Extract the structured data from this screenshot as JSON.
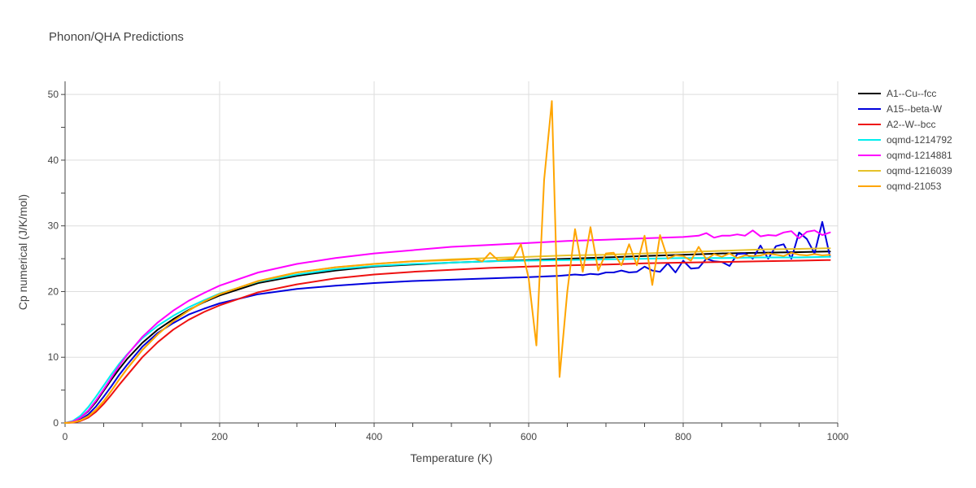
{
  "chart_data": {
    "type": "line",
    "title": "Phonon/QHA Predictions",
    "xlabel": "Temperature (K)",
    "ylabel": "Cp numerical (J/K/mol)",
    "xlim": [
      0,
      1000
    ],
    "ylim": [
      0,
      52
    ],
    "xticks": [
      0,
      200,
      400,
      600,
      800,
      1000
    ],
    "yticks": [
      0,
      10,
      20,
      30,
      40,
      50
    ],
    "grid": true,
    "legend_position": "top-right",
    "series": [
      {
        "name": "A1--Cu--fcc",
        "color": "#000000",
        "points": [
          [
            0,
            0
          ],
          [
            10,
            0.2
          ],
          [
            20,
            0.8
          ],
          [
            30,
            1.8
          ],
          [
            40,
            3.2
          ],
          [
            50,
            4.9
          ],
          [
            60,
            6.6
          ],
          [
            70,
            8.2
          ],
          [
            80,
            9.7
          ],
          [
            100,
            12.2
          ],
          [
            120,
            14.2
          ],
          [
            140,
            15.8
          ],
          [
            160,
            17.2
          ],
          [
            180,
            18.4
          ],
          [
            200,
            19.4
          ],
          [
            250,
            21.3
          ],
          [
            300,
            22.4
          ],
          [
            350,
            23.2
          ],
          [
            400,
            23.8
          ],
          [
            450,
            24.1
          ],
          [
            500,
            24.4
          ],
          [
            550,
            24.6
          ],
          [
            600,
            24.8
          ],
          [
            650,
            25.0
          ],
          [
            700,
            25.2
          ],
          [
            750,
            25.4
          ],
          [
            800,
            25.6
          ],
          [
            850,
            25.8
          ],
          [
            900,
            25.9
          ],
          [
            950,
            26.0
          ],
          [
            990,
            26.1
          ]
        ]
      },
      {
        "name": "A15--beta-W",
        "color": "#0000dd",
        "points": [
          [
            0,
            0
          ],
          [
            10,
            0.1
          ],
          [
            20,
            0.5
          ],
          [
            30,
            1.3
          ],
          [
            40,
            2.5
          ],
          [
            50,
            4.0
          ],
          [
            60,
            5.6
          ],
          [
            70,
            7.3
          ],
          [
            80,
            8.8
          ],
          [
            100,
            11.6
          ],
          [
            120,
            13.7
          ],
          [
            140,
            15.2
          ],
          [
            160,
            16.5
          ],
          [
            180,
            17.4
          ],
          [
            200,
            18.2
          ],
          [
            250,
            19.6
          ],
          [
            300,
            20.4
          ],
          [
            350,
            20.9
          ],
          [
            400,
            21.3
          ],
          [
            450,
            21.6
          ],
          [
            500,
            21.8
          ],
          [
            550,
            22.0
          ],
          [
            600,
            22.2
          ],
          [
            640,
            22.4
          ],
          [
            660,
            22.6
          ],
          [
            670,
            22.5
          ],
          [
            680,
            22.7
          ],
          [
            690,
            22.6
          ],
          [
            700,
            22.9
          ],
          [
            710,
            22.9
          ],
          [
            720,
            23.2
          ],
          [
            730,
            22.9
          ],
          [
            740,
            23.0
          ],
          [
            750,
            23.8
          ],
          [
            760,
            23.2
          ],
          [
            770,
            23.0
          ],
          [
            780,
            24.3
          ],
          [
            790,
            22.9
          ],
          [
            800,
            24.7
          ],
          [
            810,
            23.5
          ],
          [
            820,
            23.6
          ],
          [
            830,
            25.0
          ],
          [
            840,
            24.6
          ],
          [
            850,
            24.5
          ],
          [
            860,
            23.9
          ],
          [
            870,
            25.7
          ],
          [
            880,
            25.8
          ],
          [
            890,
            25.0
          ],
          [
            900,
            27.0
          ],
          [
            910,
            25.0
          ],
          [
            920,
            26.9
          ],
          [
            930,
            27.2
          ],
          [
            940,
            25.0
          ],
          [
            950,
            29.0
          ],
          [
            960,
            28.0
          ],
          [
            970,
            25.8
          ],
          [
            980,
            30.6
          ],
          [
            990,
            25.3
          ]
        ]
      },
      {
        "name": "A2--W--bcc",
        "color": "#ee1111",
        "points": [
          [
            0,
            0
          ],
          [
            10,
            0.05
          ],
          [
            20,
            0.3
          ],
          [
            30,
            0.8
          ],
          [
            40,
            1.7
          ],
          [
            50,
            2.9
          ],
          [
            60,
            4.3
          ],
          [
            70,
            5.8
          ],
          [
            80,
            7.2
          ],
          [
            100,
            10.0
          ],
          [
            120,
            12.3
          ],
          [
            140,
            14.2
          ],
          [
            160,
            15.7
          ],
          [
            180,
            16.9
          ],
          [
            200,
            17.9
          ],
          [
            250,
            19.9
          ],
          [
            300,
            21.1
          ],
          [
            350,
            22.0
          ],
          [
            400,
            22.6
          ],
          [
            450,
            23.0
          ],
          [
            500,
            23.3
          ],
          [
            550,
            23.6
          ],
          [
            600,
            23.8
          ],
          [
            650,
            24.0
          ],
          [
            700,
            24.1
          ],
          [
            750,
            24.3
          ],
          [
            800,
            24.4
          ],
          [
            850,
            24.5
          ],
          [
            900,
            24.6
          ],
          [
            950,
            24.7
          ],
          [
            990,
            24.8
          ]
        ]
      },
      {
        "name": "oqmd-1214792",
        "color": "#00eeee",
        "points": [
          [
            0,
            0
          ],
          [
            10,
            0.3
          ],
          [
            20,
            1.1
          ],
          [
            30,
            2.4
          ],
          [
            40,
            4.0
          ],
          [
            50,
            5.7
          ],
          [
            60,
            7.4
          ],
          [
            70,
            9.0
          ],
          [
            80,
            10.4
          ],
          [
            100,
            12.9
          ],
          [
            120,
            14.8
          ],
          [
            140,
            16.3
          ],
          [
            160,
            17.6
          ],
          [
            180,
            18.7
          ],
          [
            200,
            19.7
          ],
          [
            250,
            21.5
          ],
          [
            300,
            22.6
          ],
          [
            350,
            23.4
          ],
          [
            400,
            23.9
          ],
          [
            450,
            24.2
          ],
          [
            500,
            24.4
          ],
          [
            550,
            24.6
          ],
          [
            600,
            24.7
          ],
          [
            650,
            24.8
          ],
          [
            700,
            24.9
          ],
          [
            750,
            25.0
          ],
          [
            800,
            25.1
          ],
          [
            850,
            25.1
          ],
          [
            900,
            25.2
          ],
          [
            950,
            25.2
          ],
          [
            990,
            25.3
          ]
        ]
      },
      {
        "name": "oqmd-1214881",
        "color": "#ff00ff",
        "points": [
          [
            0,
            0
          ],
          [
            10,
            0.2
          ],
          [
            20,
            0.8
          ],
          [
            30,
            1.9
          ],
          [
            40,
            3.4
          ],
          [
            50,
            5.1
          ],
          [
            60,
            6.9
          ],
          [
            70,
            8.7
          ],
          [
            80,
            10.3
          ],
          [
            100,
            13.1
          ],
          [
            120,
            15.3
          ],
          [
            140,
            17.1
          ],
          [
            160,
            18.6
          ],
          [
            180,
            19.8
          ],
          [
            200,
            20.9
          ],
          [
            250,
            22.9
          ],
          [
            300,
            24.2
          ],
          [
            350,
            25.1
          ],
          [
            400,
            25.8
          ],
          [
            450,
            26.3
          ],
          [
            500,
            26.8
          ],
          [
            550,
            27.1
          ],
          [
            600,
            27.4
          ],
          [
            650,
            27.7
          ],
          [
            700,
            27.9
          ],
          [
            750,
            28.1
          ],
          [
            800,
            28.3
          ],
          [
            820,
            28.5
          ],
          [
            830,
            28.9
          ],
          [
            840,
            28.2
          ],
          [
            850,
            28.5
          ],
          [
            860,
            28.5
          ],
          [
            870,
            28.7
          ],
          [
            880,
            28.5
          ],
          [
            890,
            29.3
          ],
          [
            900,
            28.4
          ],
          [
            910,
            28.6
          ],
          [
            920,
            28.5
          ],
          [
            930,
            29.0
          ],
          [
            940,
            29.2
          ],
          [
            950,
            28.1
          ],
          [
            960,
            29.1
          ],
          [
            970,
            29.3
          ],
          [
            980,
            28.6
          ],
          [
            990,
            29.0
          ]
        ]
      },
      {
        "name": "oqmd-1216039",
        "color": "#e6c22a",
        "points": [
          [
            0,
            0
          ],
          [
            10,
            0.1
          ],
          [
            20,
            0.4
          ],
          [
            30,
            1.0
          ],
          [
            40,
            2.0
          ],
          [
            50,
            3.3
          ],
          [
            60,
            4.9
          ],
          [
            70,
            6.6
          ],
          [
            80,
            8.2
          ],
          [
            100,
            11.1
          ],
          [
            120,
            13.5
          ],
          [
            140,
            15.5
          ],
          [
            160,
            17.1
          ],
          [
            180,
            18.5
          ],
          [
            200,
            19.6
          ],
          [
            250,
            21.6
          ],
          [
            300,
            22.9
          ],
          [
            350,
            23.7
          ],
          [
            400,
            24.2
          ],
          [
            450,
            24.6
          ],
          [
            500,
            24.9
          ],
          [
            550,
            25.1
          ],
          [
            600,
            25.3
          ],
          [
            650,
            25.5
          ],
          [
            700,
            25.6
          ],
          [
            750,
            25.8
          ],
          [
            800,
            26.0
          ],
          [
            850,
            26.2
          ],
          [
            900,
            26.4
          ],
          [
            950,
            26.5
          ],
          [
            990,
            26.6
          ]
        ]
      },
      {
        "name": "oqmd-21053",
        "color": "#ffa500",
        "points": [
          [
            0,
            0
          ],
          [
            10,
            0.1
          ],
          [
            20,
            0.4
          ],
          [
            30,
            1.0
          ],
          [
            40,
            2.0
          ],
          [
            50,
            3.3
          ],
          [
            60,
            4.9
          ],
          [
            70,
            6.6
          ],
          [
            80,
            8.2
          ],
          [
            100,
            11.1
          ],
          [
            120,
            13.5
          ],
          [
            140,
            15.5
          ],
          [
            160,
            17.1
          ],
          [
            180,
            18.5
          ],
          [
            200,
            19.6
          ],
          [
            250,
            21.6
          ],
          [
            300,
            22.9
          ],
          [
            350,
            23.7
          ],
          [
            400,
            24.2
          ],
          [
            450,
            24.6
          ],
          [
            500,
            24.8
          ],
          [
            520,
            24.9
          ],
          [
            530,
            25.0
          ],
          [
            540,
            24.6
          ],
          [
            550,
            25.9
          ],
          [
            560,
            24.8
          ],
          [
            570,
            24.9
          ],
          [
            580,
            25.0
          ],
          [
            590,
            27.2
          ],
          [
            600,
            22.0
          ],
          [
            610,
            11.8
          ],
          [
            620,
            37.0
          ],
          [
            630,
            49.0
          ],
          [
            640,
            7.0
          ],
          [
            650,
            20.0
          ],
          [
            660,
            29.5
          ],
          [
            670,
            23.0
          ],
          [
            680,
            29.8
          ],
          [
            690,
            23.2
          ],
          [
            700,
            25.8
          ],
          [
            710,
            25.9
          ],
          [
            720,
            24.0
          ],
          [
            730,
            27.2
          ],
          [
            740,
            24.0
          ],
          [
            750,
            28.5
          ],
          [
            760,
            21.0
          ],
          [
            770,
            28.6
          ],
          [
            780,
            25.0
          ],
          [
            790,
            25.5
          ],
          [
            800,
            25.4
          ],
          [
            810,
            24.7
          ],
          [
            820,
            26.8
          ],
          [
            830,
            24.9
          ],
          [
            840,
            25.7
          ],
          [
            850,
            25.3
          ],
          [
            860,
            25.8
          ],
          [
            870,
            25.1
          ],
          [
            880,
            25.5
          ],
          [
            890,
            25.4
          ],
          [
            900,
            25.5
          ],
          [
            910,
            25.8
          ],
          [
            920,
            25.6
          ],
          [
            930,
            25.4
          ],
          [
            940,
            25.9
          ],
          [
            950,
            25.6
          ],
          [
            960,
            25.5
          ],
          [
            970,
            25.7
          ],
          [
            980,
            25.5
          ],
          [
            990,
            25.6
          ]
        ]
      }
    ]
  }
}
